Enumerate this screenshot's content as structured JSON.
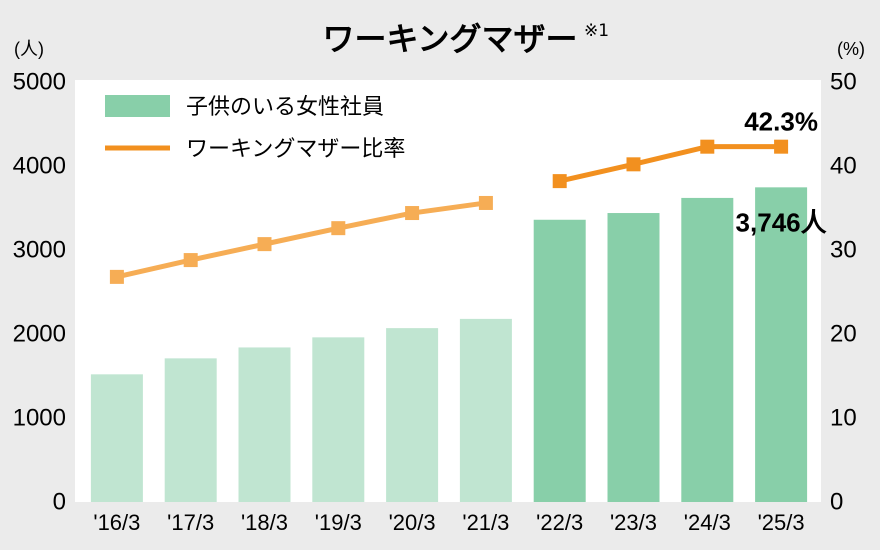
{
  "page": {
    "background": "#ebebeb"
  },
  "chart_data": {
    "type": "bar",
    "title": "ワーキングマザー",
    "title_note": "※1",
    "categories": [
      "'16/3",
      "'17/3",
      "'18/3",
      "'19/3",
      "'20/3",
      "'21/3",
      "'22/3",
      "'23/3",
      "'24/3",
      "'25/3"
    ],
    "series": [
      {
        "name": "子供のいる女性社員",
        "type": "bar",
        "axis": "left",
        "values": [
          1520,
          1710,
          1840,
          1960,
          2070,
          2180,
          3360,
          3440,
          3620,
          3746
        ]
      },
      {
        "name": "ワーキングマザー比率",
        "type": "line",
        "axis": "right",
        "values": [
          26.8,
          28.8,
          30.7,
          32.6,
          34.4,
          35.6,
          38.2,
          40.2,
          42.3,
          42.3
        ]
      }
    ],
    "y_left": {
      "label": "(人)",
      "range": [
        0,
        5000
      ],
      "ticks": [
        0,
        1000,
        2000,
        3000,
        4000,
        5000
      ]
    },
    "y_right": {
      "label": "(%)",
      "range": [
        0,
        50
      ],
      "ticks": [
        0,
        10,
        20,
        30,
        40,
        50
      ]
    },
    "groups": [
      {
        "start": 0,
        "end": 5,
        "bar_color": "#c0e5d1",
        "line_color": "#f6ad55"
      },
      {
        "start": 6,
        "end": 9,
        "bar_color": "#88cfa9",
        "line_color": "#f2901f"
      }
    ],
    "annotations": [
      {
        "text": "42.3%",
        "series": 1,
        "index": 9
      },
      {
        "text": "3,746人",
        "series": 0,
        "index": 9
      }
    ],
    "legend": "top-left",
    "grid": false,
    "colors": {
      "plot_background": "#ffffff",
      "text": "#000000"
    }
  }
}
